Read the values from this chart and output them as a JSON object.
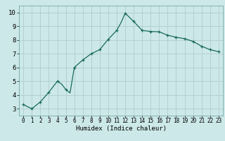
{
  "x_line": [
    0,
    1,
    2,
    3,
    4,
    4.5,
    5,
    5.5,
    6,
    7,
    8,
    9,
    10,
    11,
    11.5,
    12,
    13,
    14,
    15,
    16,
    17,
    18,
    19,
    20,
    21,
    22,
    23
  ],
  "y_line": [
    3.3,
    3.0,
    3.5,
    4.2,
    5.0,
    4.8,
    4.4,
    4.15,
    6.0,
    6.55,
    7.0,
    7.3,
    8.05,
    8.7,
    9.25,
    9.95,
    9.35,
    8.7,
    8.62,
    8.6,
    8.35,
    8.2,
    8.1,
    7.9,
    7.55,
    7.3,
    7.15
  ],
  "x_markers": [
    0,
    1,
    2,
    3,
    4,
    5,
    6,
    7,
    8,
    9,
    10,
    11,
    12,
    13,
    14,
    15,
    16,
    17,
    18,
    19,
    20,
    21,
    22,
    23
  ],
  "y_markers": [
    3.3,
    3.0,
    3.5,
    4.2,
    5.0,
    4.4,
    6.0,
    6.55,
    7.0,
    7.3,
    8.05,
    8.7,
    9.95,
    9.35,
    8.7,
    8.62,
    8.6,
    8.35,
    8.2,
    8.1,
    7.9,
    7.55,
    7.3,
    7.15
  ],
  "xlabel": "Humidex (Indice chaleur)",
  "line_color": "#1a6b5a",
  "bg_color": "#cce8e8",
  "grid_color": "#b0cccc",
  "xlim": [
    -0.5,
    23.5
  ],
  "ylim": [
    2.5,
    10.5
  ],
  "yticks": [
    3,
    4,
    5,
    6,
    7,
    8,
    9,
    10
  ],
  "xticks": [
    0,
    1,
    2,
    3,
    4,
    5,
    6,
    7,
    8,
    9,
    10,
    11,
    12,
    13,
    14,
    15,
    16,
    17,
    18,
    19,
    20,
    21,
    22,
    23
  ]
}
